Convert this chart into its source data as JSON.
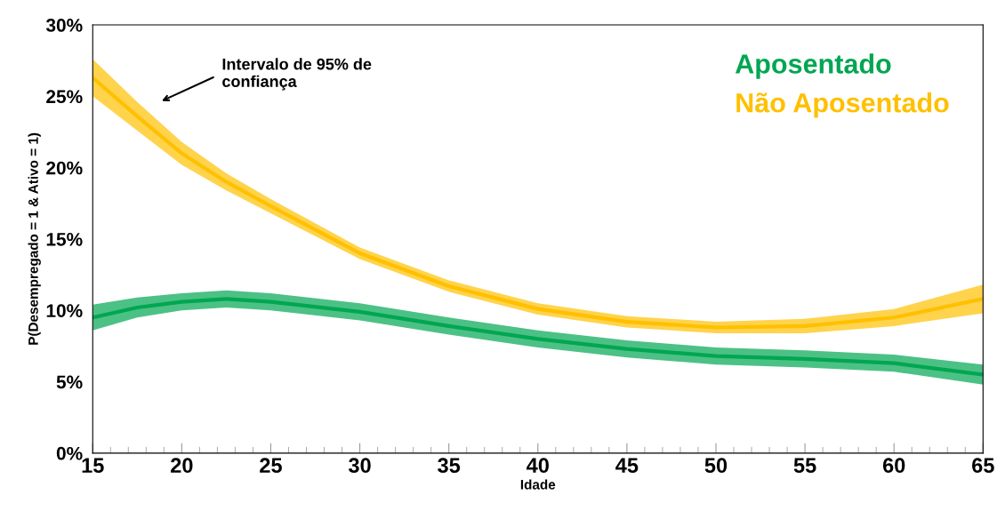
{
  "chart_data": {
    "type": "line",
    "xlabel": "Idade",
    "ylabel": "P(Desempregado = 1 & Ativo = 1)",
    "xlim": [
      15,
      65
    ],
    "xticks": [
      15,
      20,
      25,
      30,
      35,
      40,
      45,
      50,
      55,
      60,
      65
    ],
    "ylim": [
      0,
      30
    ],
    "yticks": [
      {
        "value": 0,
        "label": "0%"
      },
      {
        "value": 5,
        "label": "5%"
      },
      {
        "value": 10,
        "label": "10%"
      },
      {
        "value": 15,
        "label": "15%"
      },
      {
        "value": 20,
        "label": "20%"
      },
      {
        "value": 25,
        "label": "25%"
      },
      {
        "value": 30,
        "label": "30%"
      }
    ],
    "grid": false,
    "legend": "top right",
    "marker": "none",
    "line_style": "solid",
    "series": [
      {
        "name": "Aposentado",
        "color": "#00a651",
        "x": [
          15,
          17.5,
          20,
          22.5,
          25,
          30,
          35,
          40,
          45,
          50,
          55,
          60,
          65
        ],
        "values": [
          9.5,
          10.2,
          10.6,
          10.8,
          10.6,
          9.9,
          8.9,
          8.0,
          7.3,
          6.8,
          6.6,
          6.3,
          5.5
        ],
        "lower": [
          8.6,
          9.5,
          10.0,
          10.2,
          10.0,
          9.3,
          8.3,
          7.4,
          6.7,
          6.2,
          6.0,
          5.7,
          4.8
        ],
        "upper": [
          10.4,
          10.9,
          11.2,
          11.4,
          11.2,
          10.5,
          9.5,
          8.6,
          7.9,
          7.4,
          7.2,
          6.9,
          6.2
        ]
      },
      {
        "name": "Não Aposentado",
        "color": "#ffc000",
        "x": [
          15,
          17.5,
          20,
          22.5,
          25,
          30,
          35,
          40,
          45,
          50,
          55,
          60,
          65
        ],
        "values": [
          26.3,
          23.6,
          21.0,
          19.0,
          17.3,
          14.0,
          11.7,
          10.1,
          9.2,
          8.8,
          8.9,
          9.5,
          10.8
        ],
        "lower": [
          25.0,
          22.6,
          20.2,
          18.4,
          16.8,
          13.6,
          11.3,
          9.7,
          8.8,
          8.4,
          8.4,
          8.9,
          9.8
        ],
        "upper": [
          27.6,
          24.6,
          21.8,
          19.6,
          17.8,
          14.4,
          12.1,
          10.5,
          9.6,
          9.2,
          9.4,
          10.1,
          11.8
        ]
      }
    ],
    "annotations": [
      "Intervalo de 95% de\nconfiança"
    ]
  }
}
